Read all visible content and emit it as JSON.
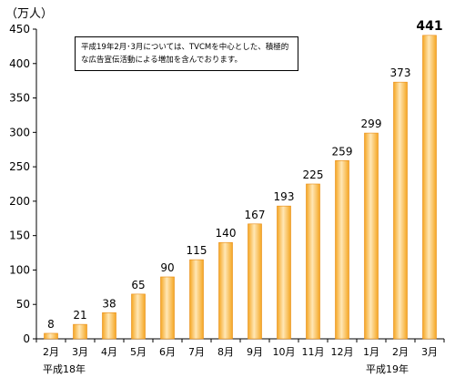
{
  "unit_label": "（万人）",
  "annotation": "平成19年2月･3月については、TVCMを中心とした、積極的な広告宣伝活動による増加を含んでおります。",
  "era_labels": {
    "heisei18": "平成18年",
    "heisei19": "平成19年"
  },
  "chart_data": {
    "type": "bar",
    "title": "",
    "xlabel": "",
    "ylabel": "（万人）",
    "ylim": [
      0,
      450
    ],
    "yticks": [
      0,
      50,
      100,
      150,
      200,
      250,
      300,
      350,
      400,
      450
    ],
    "categories": [
      "2月",
      "3月",
      "4月",
      "5月",
      "6月",
      "7月",
      "8月",
      "9月",
      "10月",
      "11月",
      "12月",
      "1月",
      "2月",
      "3月"
    ],
    "values": [
      8,
      21,
      38,
      65,
      90,
      115,
      140,
      167,
      193,
      225,
      259,
      299,
      373,
      441
    ],
    "grid": false,
    "bar_color": "#F5A623",
    "bar_highlight": "#FFE7B5",
    "bar_border": "#E88A10"
  }
}
